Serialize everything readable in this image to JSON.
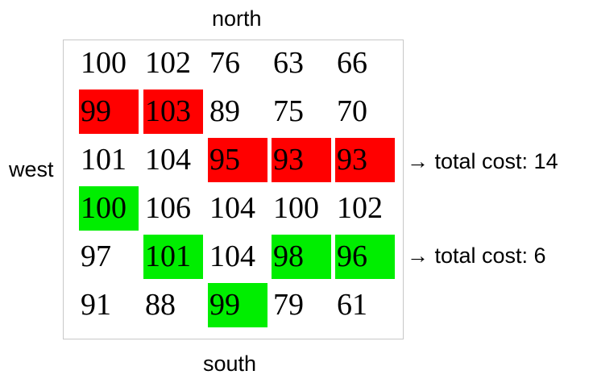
{
  "labels": {
    "north": "north",
    "south": "south",
    "west": "west",
    "path_red_cost": "→ total cost: 14",
    "path_green_cost": "→ total cost: 6"
  },
  "colors": {
    "red_path": "#ff0000",
    "green_path": "#00ee00"
  },
  "grid": [
    [
      "100",
      "102",
      "76",
      "63",
      "66"
    ],
    [
      "99",
      "103",
      "89",
      "75",
      "70"
    ],
    [
      "101",
      "104",
      "95",
      "93",
      "93"
    ],
    [
      "100",
      "106",
      "104",
      "100",
      "102"
    ],
    [
      "97",
      "101",
      "104",
      "98",
      "96"
    ],
    [
      "91",
      "88",
      "99",
      "79",
      "61"
    ]
  ],
  "highlights": {
    "red": [
      [
        1,
        0
      ],
      [
        1,
        1
      ],
      [
        2,
        2
      ],
      [
        2,
        3
      ],
      [
        2,
        4
      ]
    ],
    "green": [
      [
        3,
        0
      ],
      [
        4,
        1
      ],
      [
        5,
        2
      ],
      [
        4,
        3
      ],
      [
        4,
        4
      ]
    ]
  }
}
